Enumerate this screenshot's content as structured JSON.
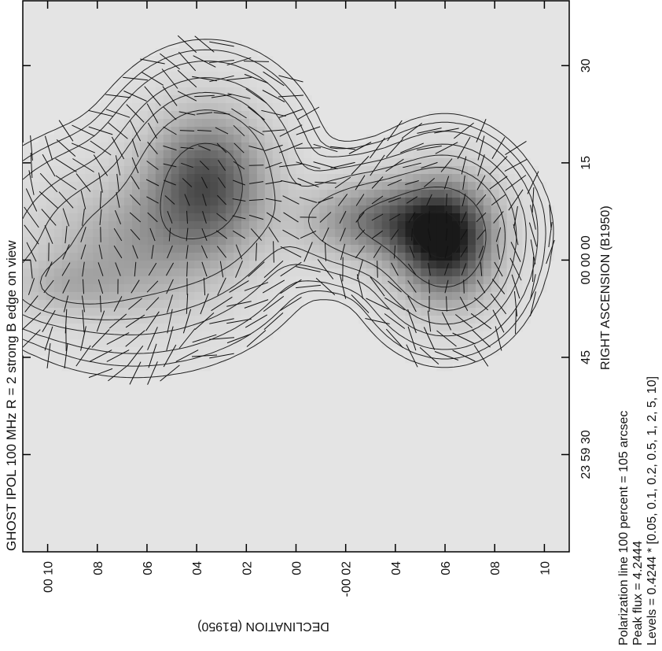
{
  "chart_data": {
    "type": "heatmap",
    "title": "GHOST  IPOL  100 MHz  R = 2  strong B  edge on view",
    "xlabel": "RIGHT ASCENSION (B1950)",
    "ylabel": "DECLINATION (B1950)",
    "x_ticks": [
      "23 59 30",
      "45",
      "00 00 00",
      "15",
      "30"
    ],
    "y_ticks": [
      "00 10",
      "08",
      "06",
      "04",
      "02",
      "00",
      "-00 02",
      "04",
      "06",
      "08",
      "10"
    ],
    "notes": [
      "Polarization line 100 percent = 105 arcsec",
      "Peak flux =  4.2444",
      "Levels = 0.4244 * [0.05, 0.1, 0.2, 0.5, 1, 2, 5, 10]"
    ],
    "peak_flux": 4.2444,
    "level_unit": 0.4244,
    "levels": [
      0.05,
      0.1,
      0.2,
      0.5,
      1,
      2,
      5,
      10
    ],
    "sources": [
      {
        "ra_s": 12,
        "dec_arcmin": 3.6,
        "sigma_ra_s": 7,
        "sigma_dec_arcmin": 1.6,
        "peak": 3.0
      },
      {
        "ra_s": 3,
        "dec_arcmin": -6.0,
        "sigma_ra_s": 6,
        "sigma_dec_arcmin": 1.3,
        "peak": 4.2444
      },
      {
        "ra_s": 6,
        "dec_arcmin": -3.5,
        "sigma_ra_s": 4,
        "sigma_dec_arcmin": 2.0,
        "peak": 2.3
      },
      {
        "ra_s": 2,
        "dec_arcmin": 6.5,
        "sigma_ra_s": 7,
        "sigma_dec_arcmin": 2.5,
        "peak": 1.3
      },
      {
        "ra_s": -4,
        "dec_arcmin": 9.2,
        "sigma_ra_s": 3,
        "sigma_dec_arcmin": 1.6,
        "peak": 0.7
      }
    ],
    "ra_range_s": [
      -45,
      40
    ],
    "dec_range_arcmin": [
      -11.0,
      11.0
    ],
    "grid": false,
    "colors": {
      "background": "#e6e6e6",
      "contour": "#222222",
      "vector": "#111111"
    }
  }
}
